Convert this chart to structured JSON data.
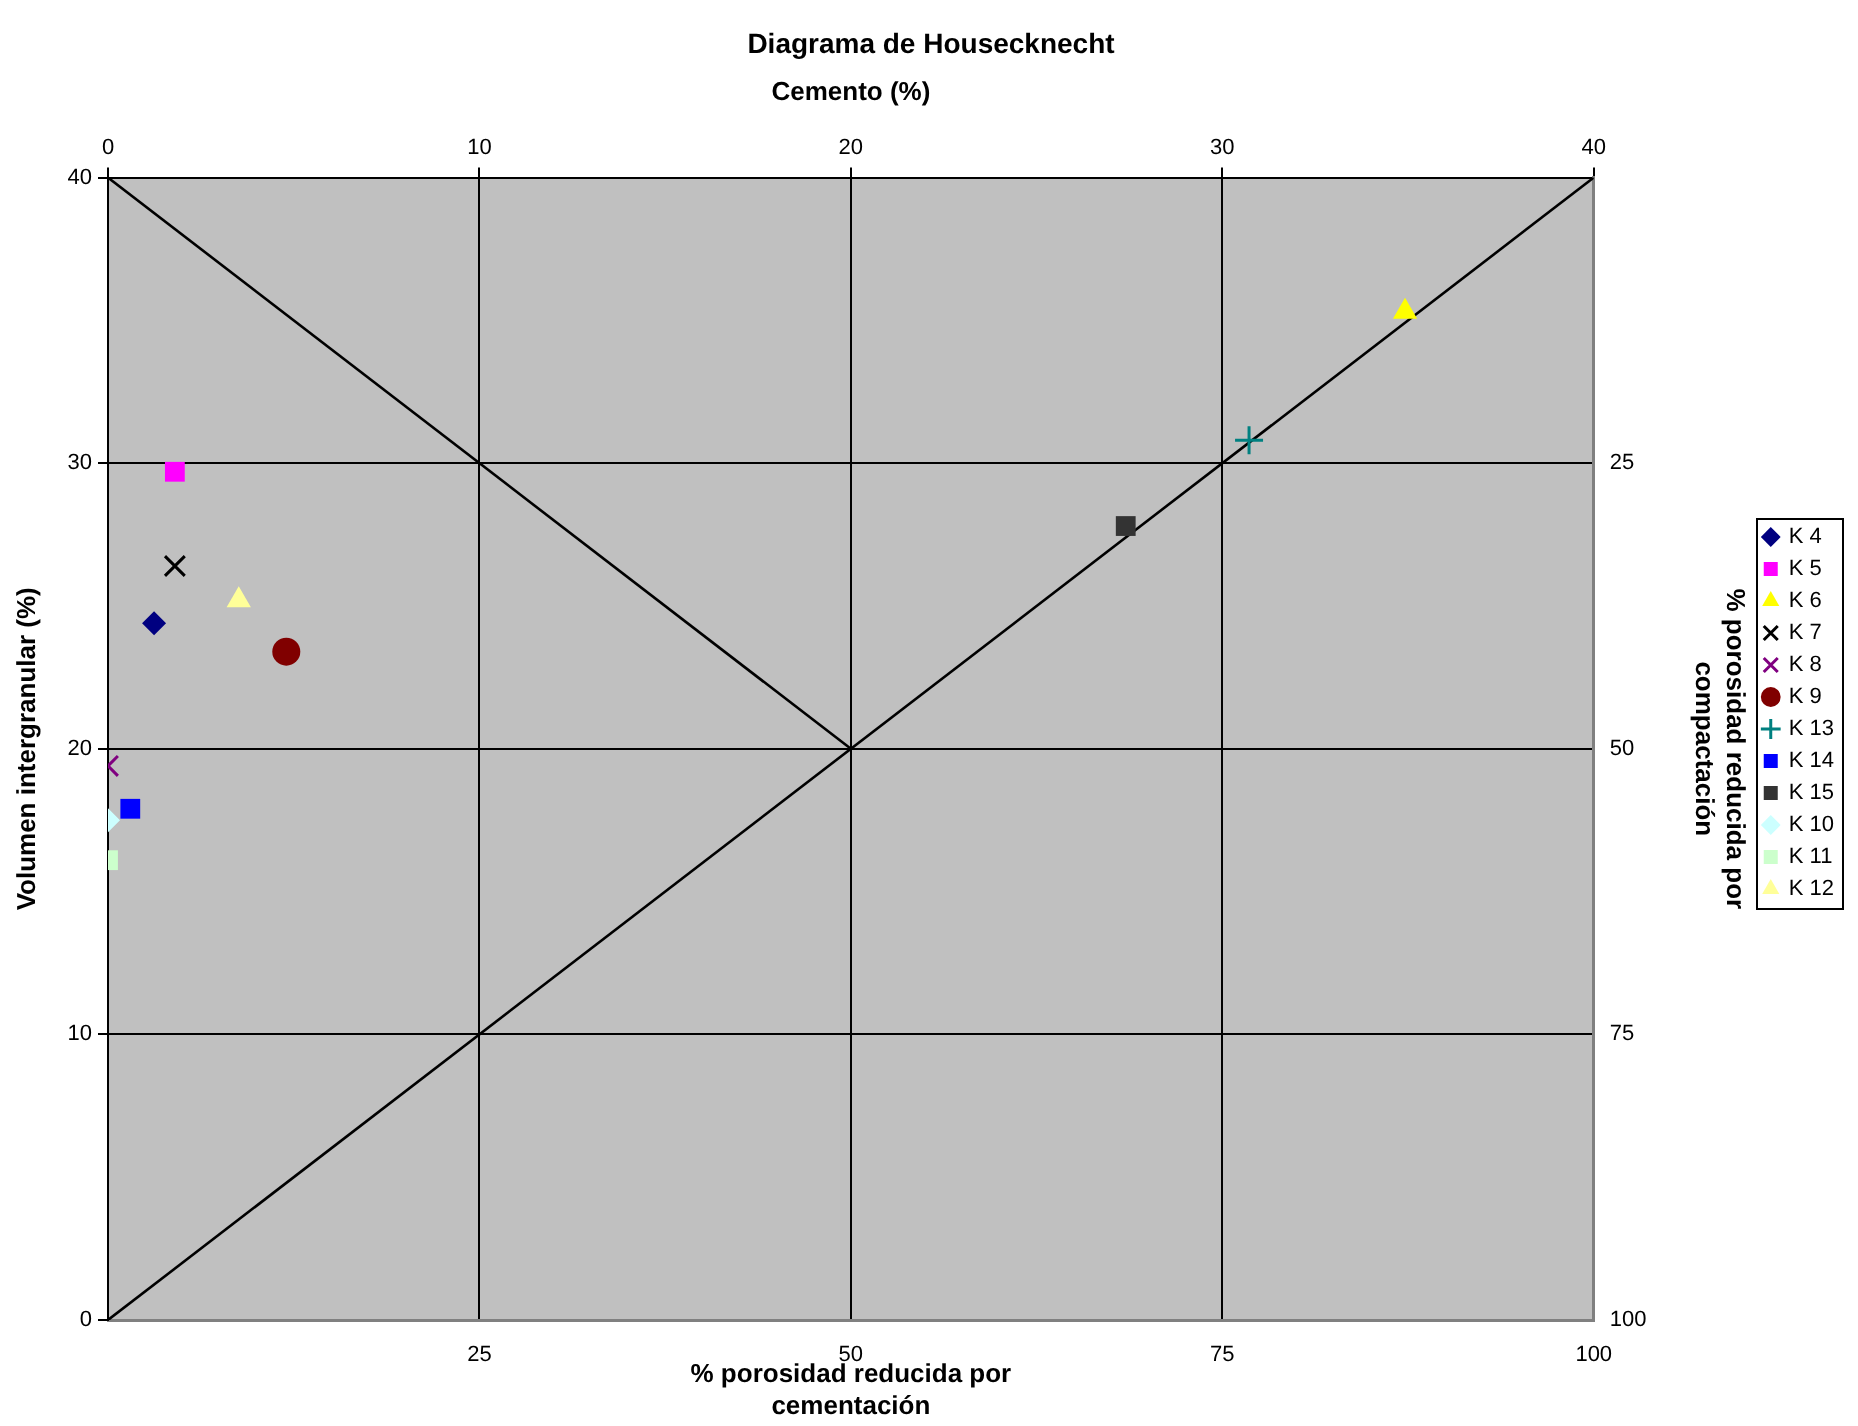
{
  "chart_data": {
    "type": "scatter",
    "title": "Diagrama de Housecknecht",
    "xlabel": "% porosidad reducida por cementación",
    "ylabel": "Volumen intergranular (%)",
    "x2label": "Cemento (%)",
    "y2label": "% porosidad reducida por compactación",
    "xlim": [
      0,
      100
    ],
    "xticks": [
      25,
      50,
      75,
      100
    ],
    "x2lim": [
      0,
      40
    ],
    "x2ticks": [
      0,
      10,
      20,
      30,
      40
    ],
    "ylim": [
      0,
      40
    ],
    "yticks": [
      0,
      10,
      20,
      30,
      40
    ],
    "y2lim": [
      100,
      0
    ],
    "y2ticks": [
      25,
      50,
      75,
      100
    ],
    "grid": true,
    "legend": "right",
    "series": [
      {
        "type": "line",
        "color": "#000000",
        "x": [
          0,
          100
        ],
        "values": [
          0,
          40
        ],
        "marker": "none"
      },
      {
        "type": "line",
        "color": "#000000",
        "x": [
          0,
          50
        ],
        "values": [
          40,
          20
        ],
        "marker": "none"
      },
      {
        "name": "K 4",
        "color": "#000080",
        "marker": "diamond",
        "x": [
          3.1
        ],
        "values": [
          24.4
        ]
      },
      {
        "name": "K 5",
        "color": "#ff00ff",
        "marker": "square",
        "x": [
          4.5
        ],
        "values": [
          29.7
        ]
      },
      {
        "name": "K 6",
        "color": "#ffff00",
        "marker": "triangle",
        "x": [
          87.3
        ],
        "values": [
          35.3
        ]
      },
      {
        "name": "K 7",
        "color": "#000000",
        "marker": "x",
        "x": [
          4.5
        ],
        "values": [
          26.4
        ]
      },
      {
        "name": "K 8",
        "color": "#800080",
        "marker": "x",
        "x": [
          0
        ],
        "values": [
          19.4
        ]
      },
      {
        "name": "K 9",
        "color": "#800000",
        "marker": "circle",
        "x": [
          12
        ],
        "values": [
          23.4
        ]
      },
      {
        "name": "K 13",
        "color": "#008080",
        "marker": "cross",
        "x": [
          76.8
        ],
        "values": [
          30.8
        ]
      },
      {
        "name": "K 14",
        "color": "#0000ff",
        "marker": "square",
        "x": [
          1.5
        ],
        "values": [
          17.9
        ]
      },
      {
        "name": "K 15",
        "color": "#333333",
        "marker": "square",
        "x": [
          68.5
        ],
        "values": [
          27.8
        ]
      },
      {
        "name": "K 10",
        "color": "#ccffff",
        "marker": "diamond",
        "x": [
          0
        ],
        "values": [
          17.5
        ]
      },
      {
        "name": "K 11",
        "color": "#ccffcc",
        "marker": "square",
        "x": [
          0
        ],
        "values": [
          16.1
        ]
      },
      {
        "name": "K 12",
        "color": "#ffff99",
        "marker": "triangle",
        "x": [
          8.8
        ],
        "values": [
          25.2
        ]
      }
    ]
  }
}
